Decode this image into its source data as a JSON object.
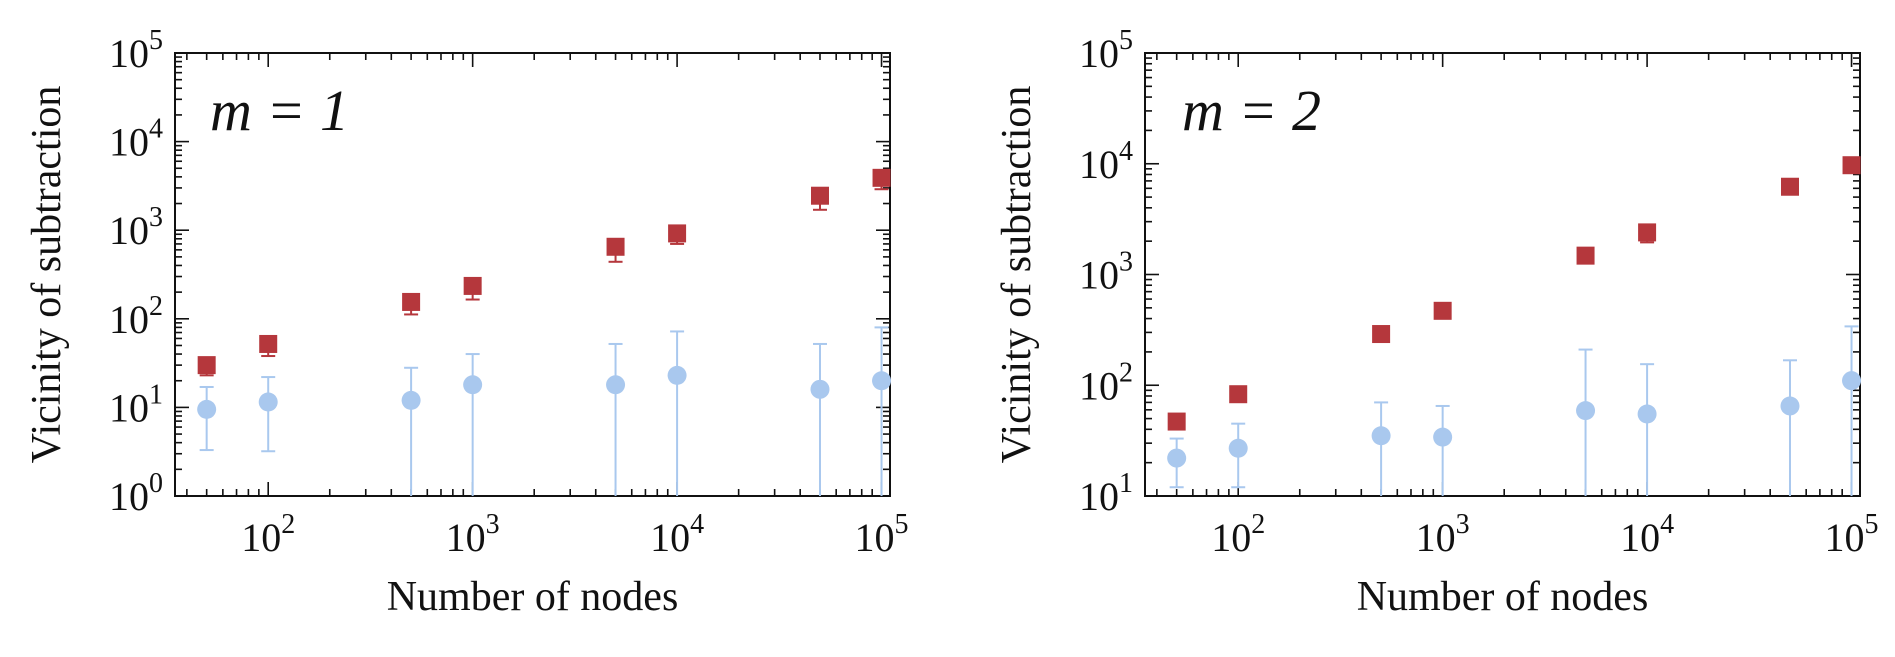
{
  "colors": {
    "red_series": "#b5373c",
    "blue_series": "#a9c8ee",
    "blue_errorbar": "#a9c8ee",
    "axis": "#111111"
  },
  "chart_data": [
    {
      "type": "scatter",
      "panel_label": "m = 1",
      "xlabel": "Number of nodes",
      "ylabel": "Vicinity of subtraction",
      "xscale": "log",
      "yscale": "log",
      "xlim": [
        35,
        110000
      ],
      "ylim": [
        1,
        100000
      ],
      "x_ticks": [
        {
          "value": 100,
          "label": "10",
          "exp": "2"
        },
        {
          "value": 1000,
          "label": "10",
          "exp": "3"
        },
        {
          "value": 10000,
          "label": "10",
          "exp": "4"
        },
        {
          "value": 100000,
          "label": "10",
          "exp": "5"
        }
      ],
      "y_ticks": [
        {
          "value": 1,
          "label": "10",
          "exp": "0"
        },
        {
          "value": 10,
          "label": "10",
          "exp": "1"
        },
        {
          "value": 100,
          "label": "10",
          "exp": "2"
        },
        {
          "value": 1000,
          "label": "10",
          "exp": "3"
        },
        {
          "value": 10000,
          "label": "10",
          "exp": "4"
        },
        {
          "value": 100000,
          "label": "10",
          "exp": "5"
        }
      ],
      "series": [
        {
          "name": "red squares",
          "marker": "square",
          "x": [
            50,
            100,
            500,
            1000,
            5000,
            10000,
            50000,
            100000
          ],
          "y": [
            30,
            52,
            155,
            235,
            650,
            920,
            2450,
            3900
          ],
          "err_low": [
            23,
            38,
            112,
            165,
            440,
            700,
            1700,
            2900
          ],
          "err_high": [
            34,
            58,
            175,
            265,
            720,
            1000,
            2650,
            4200
          ]
        },
        {
          "name": "blue circles",
          "marker": "circle",
          "x": [
            50,
            100,
            500,
            1000,
            5000,
            10000,
            50000,
            100000
          ],
          "y": [
            9.5,
            11.5,
            12,
            18,
            18,
            23,
            16,
            20
          ],
          "err_low": [
            3.3,
            3.2,
            1,
            1,
            1,
            1,
            1,
            1
          ],
          "err_high": [
            17,
            22,
            28,
            40,
            52,
            72,
            52,
            80
          ]
        }
      ]
    },
    {
      "type": "scatter",
      "panel_label": "m = 2",
      "xlabel": "Number of nodes",
      "ylabel": "Vicinity of subtraction",
      "xscale": "log",
      "yscale": "log",
      "xlim": [
        35,
        110000
      ],
      "ylim": [
        10,
        100000
      ],
      "x_ticks": [
        {
          "value": 100,
          "label": "10",
          "exp": "2"
        },
        {
          "value": 1000,
          "label": "10",
          "exp": "3"
        },
        {
          "value": 10000,
          "label": "10",
          "exp": "4"
        },
        {
          "value": 100000,
          "label": "10",
          "exp": "5"
        }
      ],
      "y_ticks": [
        {
          "value": 10,
          "label": "10",
          "exp": "1"
        },
        {
          "value": 100,
          "label": "10",
          "exp": "2"
        },
        {
          "value": 1000,
          "label": "10",
          "exp": "3"
        },
        {
          "value": 10000,
          "label": "10",
          "exp": "4"
        },
        {
          "value": 100000,
          "label": "10",
          "exp": "5"
        }
      ],
      "series": [
        {
          "name": "red squares",
          "marker": "square",
          "x": [
            50,
            100,
            500,
            1000,
            5000,
            10000,
            50000,
            100000
          ],
          "y": [
            47,
            83,
            290,
            470,
            1480,
            2400,
            6200,
            9700
          ],
          "err_low": [
            42,
            75,
            255,
            420,
            1300,
            1950,
            5400,
            8300
          ],
          "err_high": [
            50,
            88,
            320,
            520,
            1600,
            2550,
            6700,
            10500
          ]
        },
        {
          "name": "blue circles",
          "marker": "circle",
          "x": [
            50,
            100,
            500,
            1000,
            5000,
            10000,
            50000,
            100000
          ],
          "y": [
            22,
            27,
            35,
            34,
            59,
            55,
            65,
            110
          ],
          "err_low": [
            12,
            12,
            10,
            10,
            10,
            10,
            10,
            10
          ],
          "err_high": [
            33,
            45,
            70,
            65,
            210,
            155,
            168,
            340
          ]
        }
      ]
    }
  ]
}
